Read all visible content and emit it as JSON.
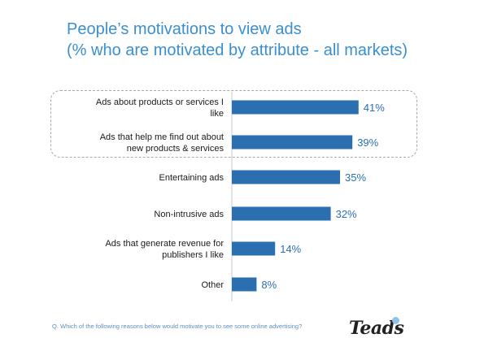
{
  "colors": {
    "bar": "#2b6fb1",
    "title": "#3a8fd0",
    "label": "#1a1a1a"
  },
  "header": {
    "title_line1": "People’s motivations to view ads",
    "title_line2": "(% who are motivated by attribute - all markets)"
  },
  "footnote": "Q. Which of the following reasons below would motivate you to see some online advertising?",
  "logo": {
    "text": "Teads"
  },
  "chart_data": {
    "type": "bar",
    "orientation": "horizontal",
    "title": "People’s motivations to view ads (% who are motivated by attribute - all markets)",
    "categories": [
      [
        "Ads about products or services I",
        "like"
      ],
      [
        "Ads that help me find out about",
        "new products & services"
      ],
      [
        "Entertaining ads"
      ],
      [
        "Non-intrusive ads"
      ],
      [
        "Ads that generate revenue for",
        "publishers I like"
      ],
      [
        "Other"
      ]
    ],
    "values": [
      41,
      39,
      35,
      32,
      14,
      8
    ],
    "value_labels": [
      "41%",
      "39%",
      "35%",
      "32%",
      "14%",
      "8%"
    ],
    "unit": "%",
    "xlim": [
      0,
      100
    ],
    "highlighted_categories": [
      0,
      1
    ],
    "grid": false,
    "legend": "none"
  }
}
